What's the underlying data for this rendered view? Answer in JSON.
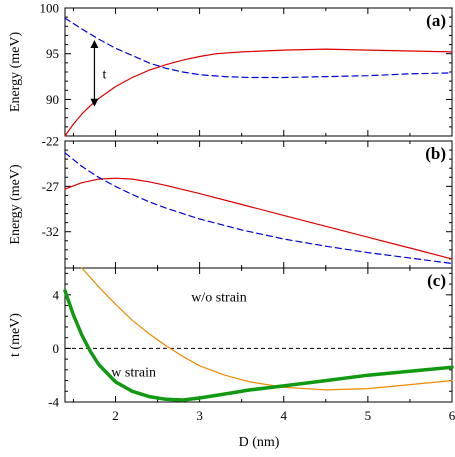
{
  "chart_data": [
    {
      "panel": "(a)",
      "type": "line",
      "xlim": [
        1.4,
        6.0
      ],
      "ylim": [
        86,
        100
      ],
      "ylabel": "Energy (meV)",
      "xlabel": "",
      "yticks": [
        90,
        95,
        100
      ],
      "xticks": [
        2,
        3,
        4,
        5,
        6
      ],
      "xtick_labels_visible": false,
      "annotation": "t",
      "annotation_arrow_x": 1.75,
      "annotation_arrow_y": [
        89.2,
        96.5
      ],
      "series": [
        {
          "color": "#dd0000",
          "dash": "solid",
          "x": [
            1.4,
            1.5,
            1.6,
            1.7,
            1.8,
            2.0,
            2.2,
            2.4,
            2.6,
            2.8,
            3.0,
            3.2,
            3.5,
            4.0,
            4.5,
            5.0,
            5.5,
            6.0
          ],
          "y": [
            86.0,
            87.3,
            88.4,
            89.3,
            90.1,
            91.4,
            92.4,
            93.2,
            93.8,
            94.3,
            94.7,
            95.0,
            95.2,
            95.4,
            95.5,
            95.4,
            95.3,
            95.2
          ]
        },
        {
          "color": "#0000dd",
          "dash": "dashed",
          "x": [
            1.4,
            1.6,
            1.8,
            2.0,
            2.2,
            2.4,
            2.6,
            2.8,
            3.0,
            3.3,
            3.6,
            4.0,
            4.5,
            5.0,
            5.5,
            6.0
          ],
          "y": [
            98.9,
            97.7,
            96.6,
            95.6,
            94.8,
            94.0,
            93.4,
            93.0,
            92.7,
            92.5,
            92.4,
            92.4,
            92.5,
            92.6,
            92.8,
            92.9
          ]
        }
      ]
    },
    {
      "panel": "(b)",
      "type": "line",
      "xlim": [
        1.4,
        6.0
      ],
      "ylim": [
        -36,
        -22
      ],
      "ylabel": "Energy (meV)",
      "xlabel": "",
      "yticks": [
        -32,
        -27,
        -22
      ],
      "xticks": [
        2,
        3,
        4,
        5,
        6
      ],
      "xtick_labels_visible": false,
      "series": [
        {
          "color": "#dd0000",
          "dash": "solid",
          "x": [
            1.4,
            1.6,
            1.8,
            2.0,
            2.2,
            2.4,
            2.6,
            3.0,
            3.5,
            4.0,
            4.5,
            5.0,
            5.5,
            6.0
          ],
          "y": [
            -27.3,
            -26.6,
            -26.2,
            -26.1,
            -26.2,
            -26.5,
            -26.9,
            -27.8,
            -29.0,
            -30.2,
            -31.4,
            -32.6,
            -33.8,
            -35.0
          ]
        },
        {
          "color": "#0000dd",
          "dash": "dashed",
          "x": [
            1.4,
            1.6,
            1.8,
            2.0,
            2.2,
            2.4,
            2.6,
            3.0,
            3.5,
            4.0,
            4.5,
            5.0,
            5.5,
            6.0
          ],
          "y": [
            -23.3,
            -24.8,
            -26.0,
            -27.0,
            -27.9,
            -28.7,
            -29.4,
            -30.6,
            -31.8,
            -32.8,
            -33.6,
            -34.3,
            -34.9,
            -35.5
          ]
        }
      ]
    },
    {
      "panel": "(c)",
      "type": "line",
      "xlim": [
        1.4,
        6.0
      ],
      "ylim": [
        -4,
        6
      ],
      "ylabel": "t (meV)",
      "xlabel": "D (nm)",
      "yticks": [
        -4,
        0,
        4
      ],
      "xticks": [
        2,
        3,
        4,
        5,
        6
      ],
      "xtick_labels_visible": true,
      "zero_line": true,
      "series": [
        {
          "name": "w/o strain",
          "color": "#ee8800",
          "dash": "solid",
          "width": 1.2,
          "label_at": [
            2.9,
            3.5
          ],
          "x": [
            1.6,
            1.8,
            2.0,
            2.2,
            2.4,
            2.6,
            2.8,
            3.0,
            3.3,
            3.6,
            4.0,
            4.5,
            5.0,
            5.5,
            6.0
          ],
          "y": [
            6.0,
            4.6,
            3.3,
            2.1,
            1.1,
            0.2,
            -0.6,
            -1.3,
            -2.0,
            -2.5,
            -2.9,
            -3.1,
            -3.0,
            -2.7,
            -2.4
          ]
        },
        {
          "name": "w strain",
          "color": "#119911",
          "dash": "solid",
          "width": 3.5,
          "label_at": [
            1.95,
            -2.1
          ],
          "x": [
            1.4,
            1.5,
            1.6,
            1.7,
            1.8,
            2.0,
            2.2,
            2.4,
            2.6,
            2.8,
            3.0,
            3.3,
            3.6,
            4.0,
            4.5,
            5.0,
            5.5,
            6.0
          ],
          "y": [
            4.3,
            2.5,
            1.0,
            -0.2,
            -1.2,
            -2.5,
            -3.2,
            -3.6,
            -3.8,
            -3.85,
            -3.7,
            -3.4,
            -3.1,
            -2.8,
            -2.4,
            -2.0,
            -1.7,
            -1.4
          ]
        }
      ]
    }
  ]
}
